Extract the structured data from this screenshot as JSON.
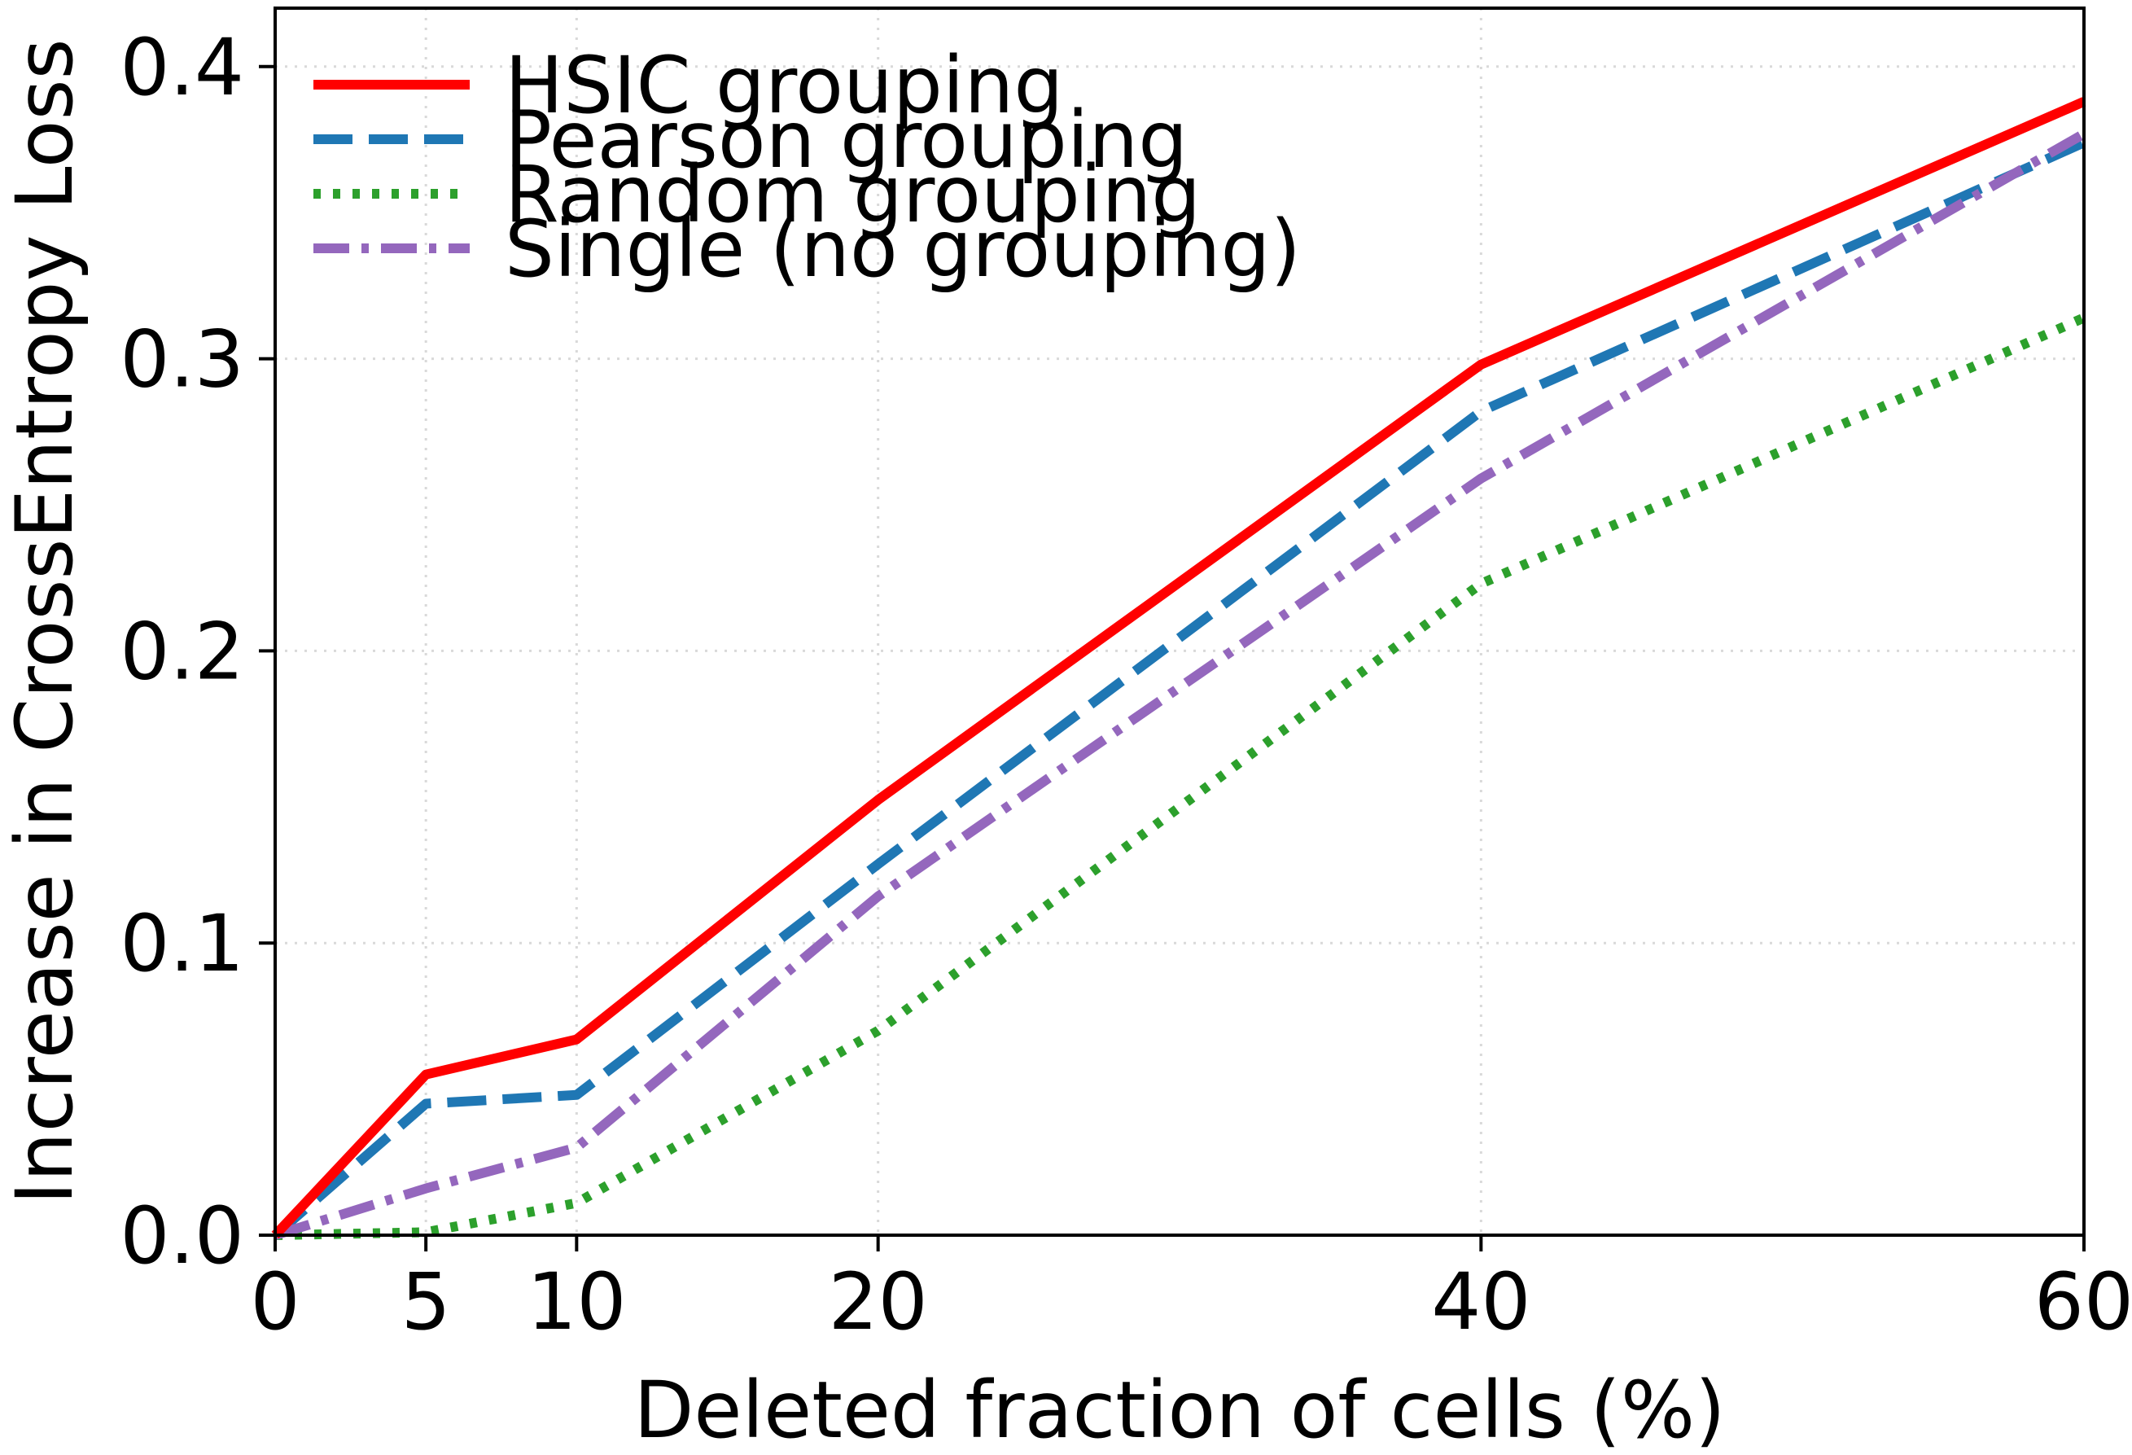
{
  "chart_data": {
    "type": "line",
    "title": "",
    "xlabel": "Deleted fraction of cells (%)",
    "ylabel": "Increase in CrossEntropy Loss",
    "x": [
      0,
      5,
      10,
      20,
      40,
      60
    ],
    "xticks": [
      "0",
      "5",
      "10",
      "20",
      "40",
      "60"
    ],
    "yticks": [
      "0.0",
      "0.1",
      "0.2",
      "0.3",
      "0.4"
    ],
    "ytick_values": [
      0.0,
      0.1,
      0.2,
      0.3,
      0.4
    ],
    "xlim": [
      0,
      60
    ],
    "ylim": [
      0,
      0.42
    ],
    "grid": "on (dotted, light)",
    "legend_position": "upper-left",
    "series": [
      {
        "name": "HSIC grouping",
        "color": "#ff0000",
        "style": "solid",
        "values": [
          0.0,
          0.055,
          0.067,
          0.149,
          0.298,
          0.388
        ]
      },
      {
        "name": "Pearson grouping",
        "color": "#1f77b4",
        "style": "dashed",
        "values": [
          0.0,
          0.045,
          0.048,
          0.127,
          0.282,
          0.374
        ]
      },
      {
        "name": "Random grouping",
        "color": "#2ca02c",
        "style": "dotted",
        "values": [
          0.0,
          0.001,
          0.011,
          0.07,
          0.223,
          0.314
        ]
      },
      {
        "name": "Single (no grouping)",
        "color": "#9467bd",
        "style": "dash-dot",
        "values": [
          0.0,
          0.016,
          0.03,
          0.116,
          0.259,
          0.377
        ]
      }
    ]
  }
}
